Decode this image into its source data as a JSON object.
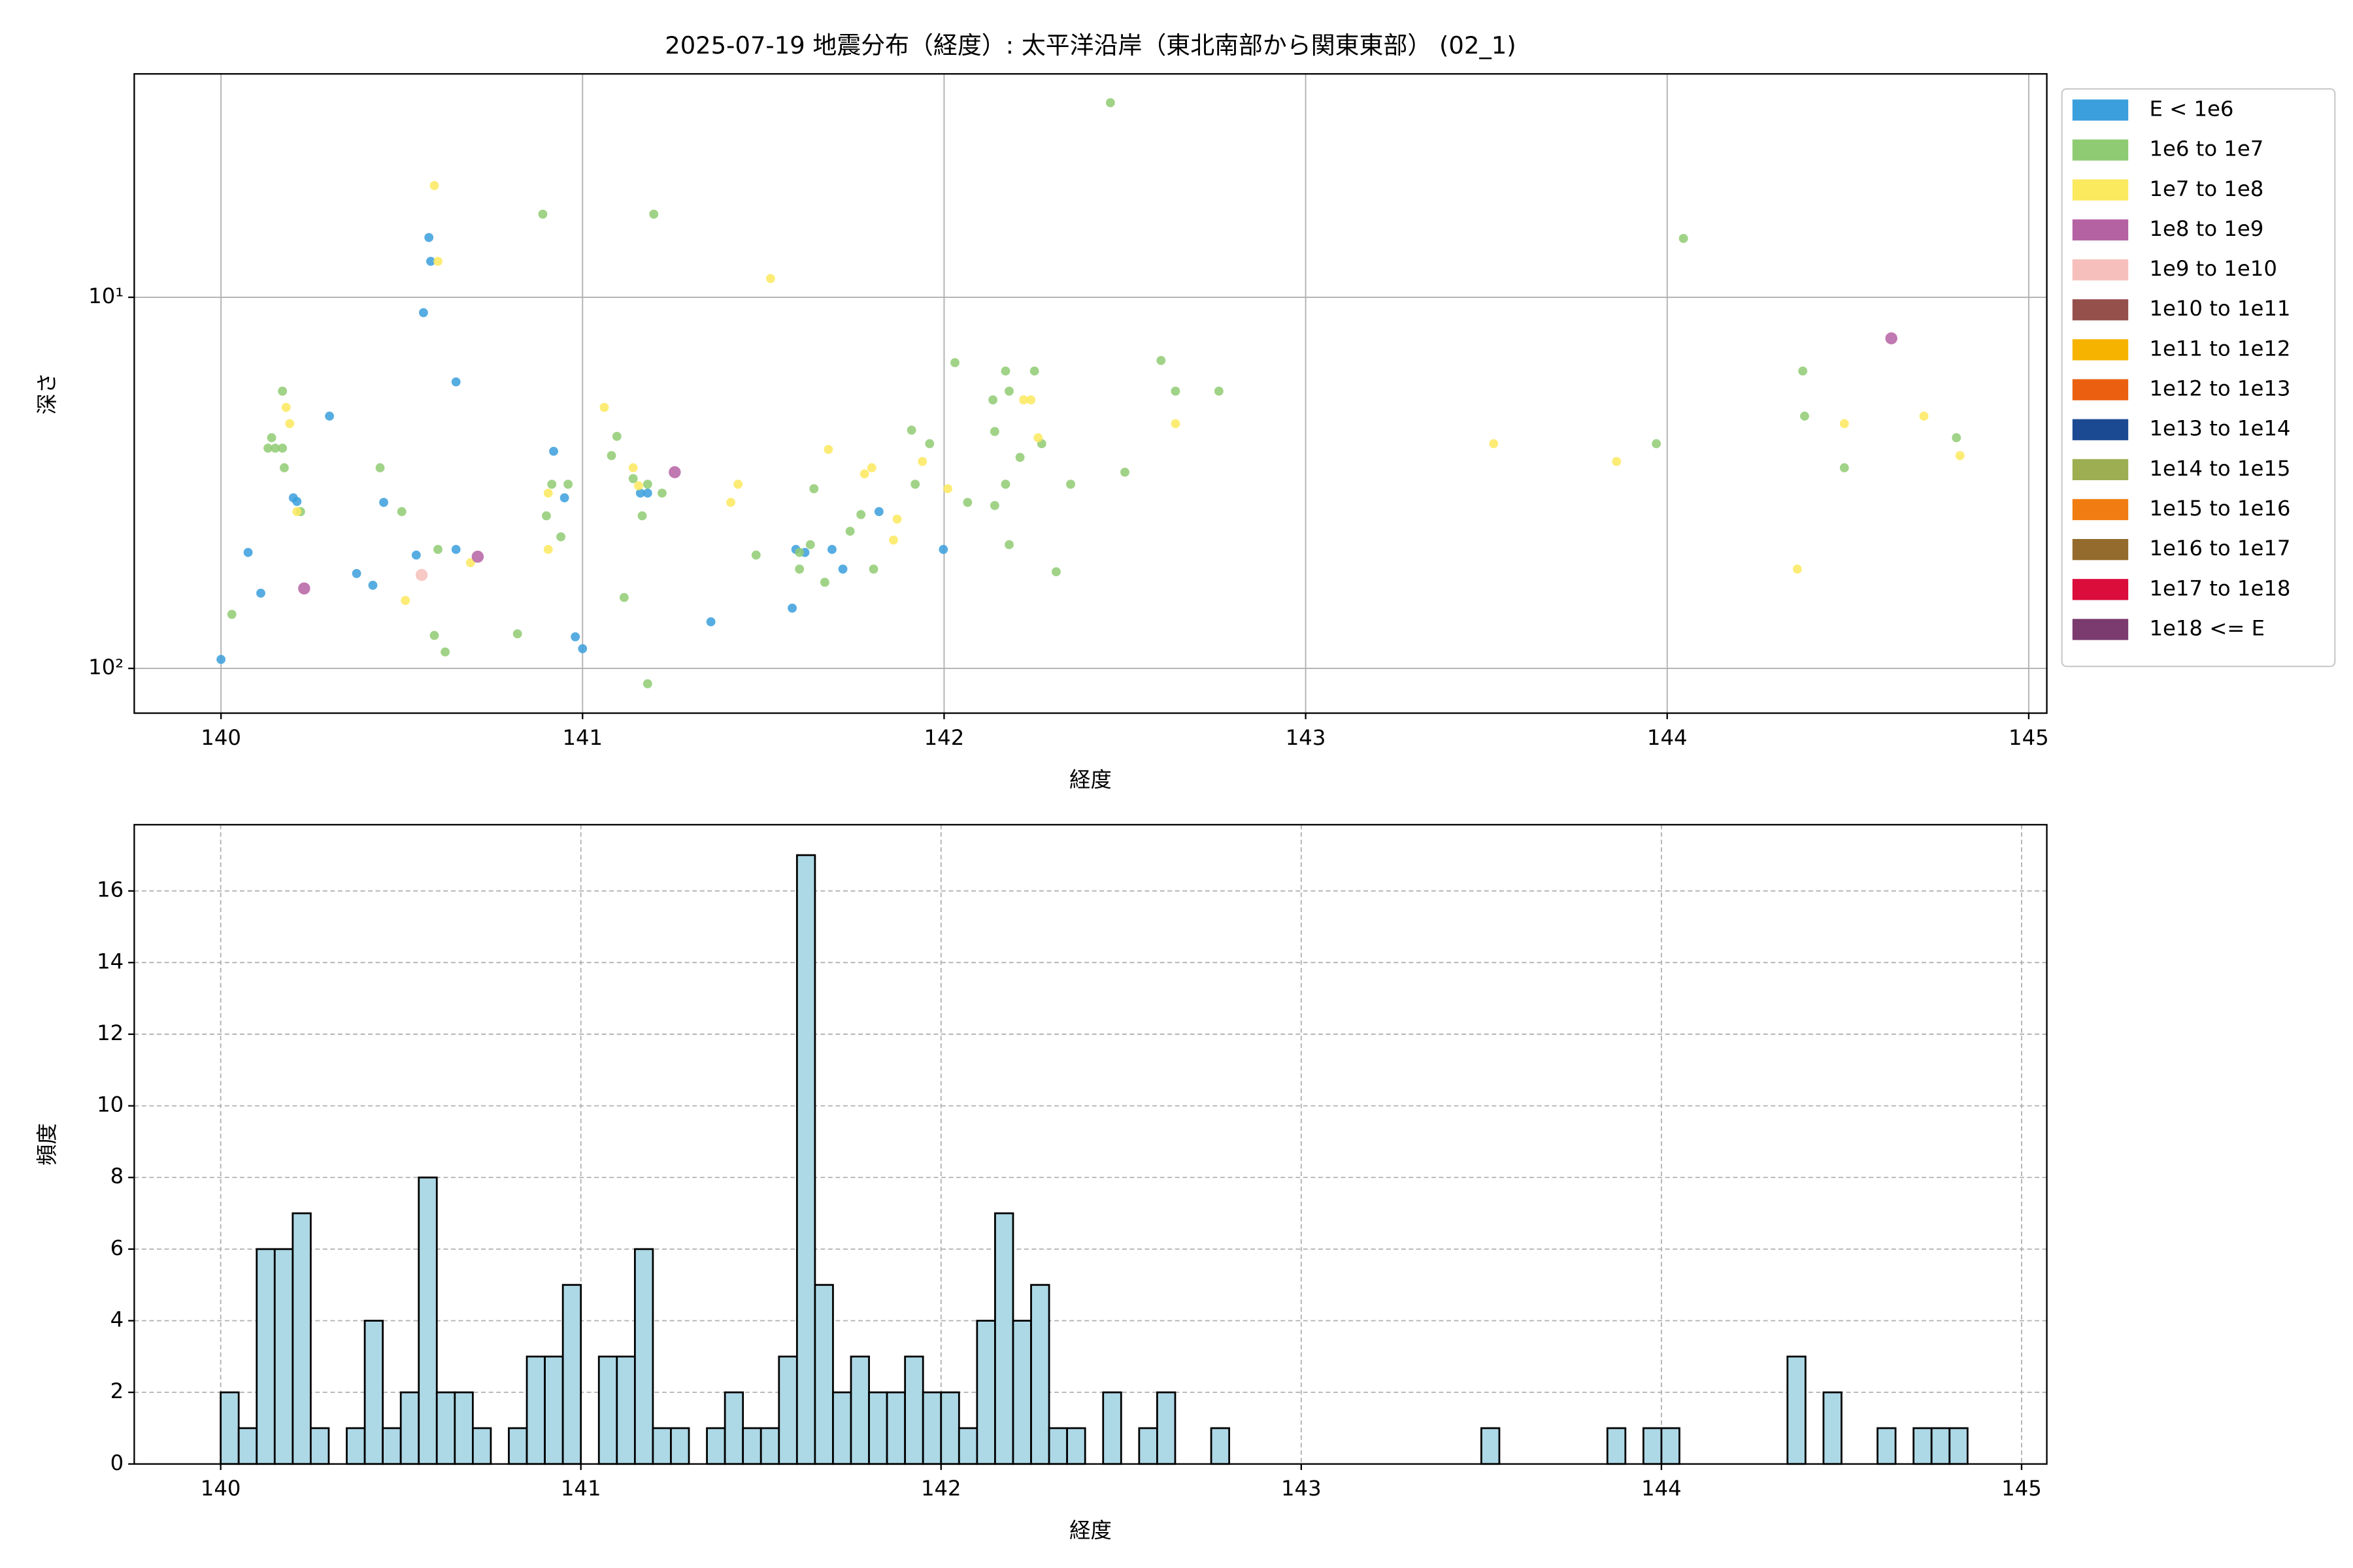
{
  "chart_data": [
    {
      "type": "scatter",
      "title": "2025-07-19 地震分布（経度）: 太平洋沿岸（東北南部から関東東部） (02_1)",
      "x_label": "経度",
      "y_label": "深さ",
      "xlim": [
        139.76,
        145.05
      ],
      "xticks": [
        140,
        141,
        142,
        143,
        144,
        145
      ],
      "ylim": [
        2.5,
        132
      ],
      "y_log": true,
      "y_inverted": true,
      "yticks": [
        {
          "value": 10,
          "label": "10¹"
        },
        {
          "value": 100,
          "label": "10²"
        }
      ],
      "grid": true,
      "legend": "outside-upper-right",
      "series": [
        {
          "name": "E < 1e6",
          "color": "#3a9fdc",
          "x": [
            140.0,
            140.075,
            140.11,
            140.2,
            140.21,
            140.3,
            140.375,
            140.42,
            140.45,
            140.54,
            140.56,
            140.575,
            140.58,
            140.65,
            140.65,
            140.92,
            140.95,
            140.98,
            141.0,
            141.16,
            141.18,
            141.355,
            141.58,
            141.59,
            141.615,
            141.69,
            141.72,
            141.82,
            141.998
          ],
          "values": [
            94.6,
            48.7,
            62.7,
            34.7,
            35.5,
            20.9,
            55.5,
            59.7,
            35.7,
            49.5,
            11.0,
            6.9,
            8.0,
            16.9,
            47.8,
            26.0,
            34.7,
            82.2,
            88.5,
            33.7,
            33.7,
            74.9,
            68.8,
            47.8,
            48.7,
            47.8,
            54.0,
            37.8,
            47.8
          ]
        },
        {
          "name": "1e6 to 1e7",
          "color": "#8fcb72",
          "x": [
            140.03,
            140.14,
            140.13,
            140.15,
            140.17,
            140.17,
            140.175,
            140.22,
            140.44,
            140.5,
            140.6,
            140.59,
            140.62,
            140.82,
            140.89,
            140.9,
            140.915,
            140.94,
            140.96,
            141.08,
            141.095,
            141.115,
            141.14,
            141.165,
            141.18,
            141.197,
            141.22,
            141.18,
            141.48,
            141.6,
            141.6,
            141.63,
            141.64,
            141.67,
            141.74,
            141.77,
            141.805,
            141.91,
            141.92,
            141.96,
            142.03,
            142.065,
            142.135,
            142.14,
            142.14,
            142.17,
            142.17,
            142.18,
            142.18,
            142.21,
            142.25,
            142.27,
            142.31,
            142.35,
            142.46,
            142.5,
            142.6,
            142.64,
            142.76,
            143.97,
            144.045,
            144.375,
            144.38,
            144.49,
            144.8
          ],
          "values": [
            71.5,
            23.9,
            25.5,
            25.5,
            25.5,
            17.9,
            28.8,
            37.8,
            28.8,
            37.8,
            47.8,
            81.5,
            90.3,
            80.7,
            5.97,
            38.8,
            31.9,
            44.2,
            31.9,
            26.7,
            23.7,
            64.4,
            30.8,
            38.8,
            31.9,
            5.97,
            33.7,
            110,
            49.5,
            54.0,
            48.7,
            46.4,
            32.8,
            58.6,
            42.7,
            38.5,
            54.0,
            22.8,
            31.9,
            24.8,
            15.0,
            35.7,
            18.9,
            36.4,
            23.0,
            15.8,
            31.9,
            46.4,
            17.9,
            27.0,
            15.8,
            24.8,
            54.9,
            31.9,
            2.99,
            29.6,
            14.8,
            17.9,
            17.9,
            24.8,
            6.94,
            15.8,
            20.9,
            28.8,
            23.9
          ]
        },
        {
          "name": "1e7 to 1e8",
          "color": "#fbe95e",
          "x": [
            140.59,
            140.6,
            140.18,
            140.19,
            140.21,
            140.51,
            140.69,
            140.905,
            140.905,
            141.06,
            141.14,
            141.155,
            141.41,
            141.43,
            141.52,
            141.68,
            141.78,
            141.8,
            141.86,
            141.87,
            141.94,
            142.01,
            142.22,
            142.24,
            142.26,
            142.64,
            143.52,
            143.86,
            144.36,
            144.49,
            144.71,
            144.81
          ],
          "values": [
            5.0,
            8.0,
            19.8,
            21.9,
            37.8,
            65.6,
            51.9,
            33.7,
            47.8,
            19.8,
            28.8,
            32.2,
            35.7,
            31.9,
            8.9,
            25.7,
            29.9,
            28.8,
            45.1,
            39.6,
            27.7,
            32.8,
            18.9,
            18.9,
            23.9,
            21.9,
            24.8,
            27.7,
            54.0,
            21.9,
            20.9,
            26.7
          ]
        },
        {
          "name": "1e8 to 1e9",
          "color": "#b562a3",
          "x": [
            140.23,
            140.71,
            141.255,
            144.62
          ],
          "values": [
            60.9,
            50.0,
            29.6,
            12.9
          ]
        },
        {
          "name": "1e9 to 1e10",
          "color": "#f6bfbb",
          "x": [
            140.555
          ],
          "values": [
            56.0
          ]
        },
        {
          "name": "1e10 to 1e11",
          "color": "#96504c",
          "x": [],
          "values": []
        },
        {
          "name": "1e11 to 1e12",
          "color": "#f6b400",
          "x": [],
          "values": []
        },
        {
          "name": "1e12 to 1e13",
          "color": "#ea6010",
          "x": [],
          "values": []
        },
        {
          "name": "1e13 to 1e14",
          "color": "#1c4a92",
          "x": [],
          "values": []
        },
        {
          "name": "1e14 to 1e15",
          "color": "#9cae51",
          "x": [],
          "values": []
        },
        {
          "name": "1e15 to 1e16",
          "color": "#f17d12",
          "x": [],
          "values": []
        },
        {
          "name": "1e16 to 1e17",
          "color": "#946b2d",
          "x": [],
          "values": []
        },
        {
          "name": "1e17 to 1e18",
          "color": "#da0d3b",
          "x": [],
          "values": []
        },
        {
          "name": "1e18 <= E",
          "color": "#7b3b6f",
          "x": [],
          "values": []
        }
      ]
    },
    {
      "type": "histogram",
      "x_label": "経度",
      "y_label": "頻度",
      "color": "#add8e6",
      "xlim": [
        139.76,
        145.07
      ],
      "xticks": [
        140,
        141,
        142,
        143,
        144,
        145
      ],
      "ylim": [
        0,
        17.85
      ],
      "yticks": [
        0,
        2,
        4,
        6,
        8,
        10,
        12,
        14,
        16
      ],
      "grid": true,
      "bins": [
        140.0,
        140.05,
        140.1,
        140.15,
        140.2,
        140.25,
        140.3,
        140.35,
        140.4,
        140.45,
        140.5,
        140.55,
        140.6,
        140.65,
        140.7,
        140.75,
        140.8,
        140.85,
        140.9,
        140.95,
        141.0,
        141.05,
        141.1,
        141.15,
        141.2,
        141.25,
        141.3,
        141.35,
        141.4,
        141.45,
        141.5,
        141.55,
        141.6,
        141.65,
        141.7,
        141.75,
        141.8,
        141.85,
        141.9,
        141.95,
        142.0,
        142.05,
        142.1,
        142.15,
        142.2,
        142.25,
        142.3,
        142.35,
        142.4,
        142.45,
        142.5,
        142.55,
        142.6,
        142.65,
        142.7,
        142.75,
        142.8,
        142.85,
        142.9,
        142.95,
        143.0,
        143.05,
        143.1,
        143.15,
        143.2,
        143.25,
        143.3,
        143.35,
        143.4,
        143.45,
        143.5,
        143.55,
        143.6,
        143.65,
        143.7,
        143.75,
        143.8,
        143.85,
        143.9,
        143.95,
        144.0,
        144.05,
        144.1,
        144.15,
        144.2,
        144.25,
        144.3,
        144.35,
        144.4,
        144.45,
        144.5,
        144.55,
        144.6,
        144.65,
        144.7,
        144.75,
        144.8,
        144.85
      ],
      "counts": [
        2,
        1,
        6,
        6,
        7,
        1,
        0,
        1,
        4,
        1,
        2,
        8,
        2,
        2,
        1,
        0,
        1,
        3,
        3,
        5,
        0,
        3,
        3,
        6,
        1,
        1,
        0,
        1,
        2,
        1,
        1,
        3,
        17,
        5,
        2,
        3,
        2,
        2,
        3,
        2,
        2,
        1,
        4,
        7,
        4,
        5,
        1,
        1,
        0,
        2,
        0,
        1,
        2,
        0,
        0,
        1,
        0,
        0,
        0,
        0,
        0,
        0,
        0,
        0,
        0,
        0,
        0,
        0,
        0,
        0,
        1,
        0,
        0,
        0,
        0,
        0,
        0,
        1,
        0,
        1,
        1,
        0,
        0,
        0,
        0,
        0,
        0,
        3,
        0,
        2,
        0,
        0,
        1,
        0,
        1,
        1,
        1
      ]
    }
  ]
}
